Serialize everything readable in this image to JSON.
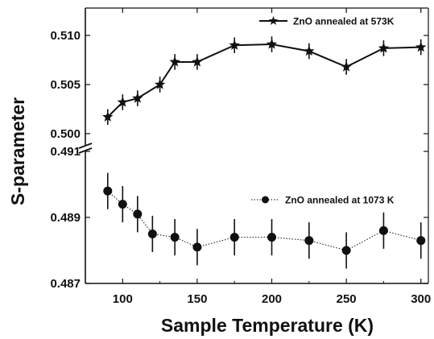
{
  "chart_data": {
    "type": "scatter",
    "title": "",
    "xlabel": "Sample Temperature (K)",
    "ylabel": "S-parameter",
    "xlim": [
      75,
      305
    ],
    "x_ticks": [
      100,
      150,
      200,
      250,
      300
    ],
    "grid": false,
    "axis_break": true,
    "panels": [
      {
        "position": "upper",
        "ylim": [
          0.4985,
          0.5125
        ],
        "y_ticks": [
          0.5,
          0.505,
          0.51
        ],
        "y_tick_labels": [
          "0.500",
          "0.505",
          "0.510"
        ],
        "legend": "top-right"
      },
      {
        "position": "lower",
        "ylim": [
          0.4869,
          0.4915
        ],
        "y_ticks": [
          0.487,
          0.489,
          0.491
        ],
        "y_tick_labels": [
          "0.487",
          "0.489",
          "0.491"
        ],
        "legend": "right"
      }
    ],
    "series": [
      {
        "name": "ZnO annealed at 573K",
        "panel": "upper",
        "marker": "star",
        "line": "solid",
        "color": "#111111",
        "x": [
          90,
          100,
          110,
          125,
          135,
          150,
          175,
          200,
          225,
          250,
          275,
          300
        ],
        "y": [
          0.5017,
          0.5032,
          0.5036,
          0.505,
          0.5073,
          0.5073,
          0.509,
          0.5091,
          0.5084,
          0.5068,
          0.5087,
          0.5088
        ],
        "err": [
          0.0008,
          0.0008,
          0.0008,
          0.0008,
          0.0008,
          0.0008,
          0.0008,
          0.0008,
          0.0008,
          0.0008,
          0.0008,
          0.0008
        ]
      },
      {
        "name": "ZnO annealed at 1073 K",
        "panel": "lower",
        "marker": "circle",
        "line": "dotted",
        "color": "#111111",
        "x": [
          90,
          100,
          110,
          120,
          135,
          150,
          175,
          200,
          225,
          250,
          275,
          300
        ],
        "y": [
          0.4898,
          0.4894,
          0.4891,
          0.4885,
          0.4884,
          0.4881,
          0.4884,
          0.4884,
          0.4883,
          0.488,
          0.4886,
          0.4883
        ],
        "err": [
          0.00055,
          0.00055,
          0.00055,
          0.00055,
          0.00055,
          0.00055,
          0.00055,
          0.00055,
          0.00055,
          0.00055,
          0.00055,
          0.00055
        ]
      }
    ]
  }
}
